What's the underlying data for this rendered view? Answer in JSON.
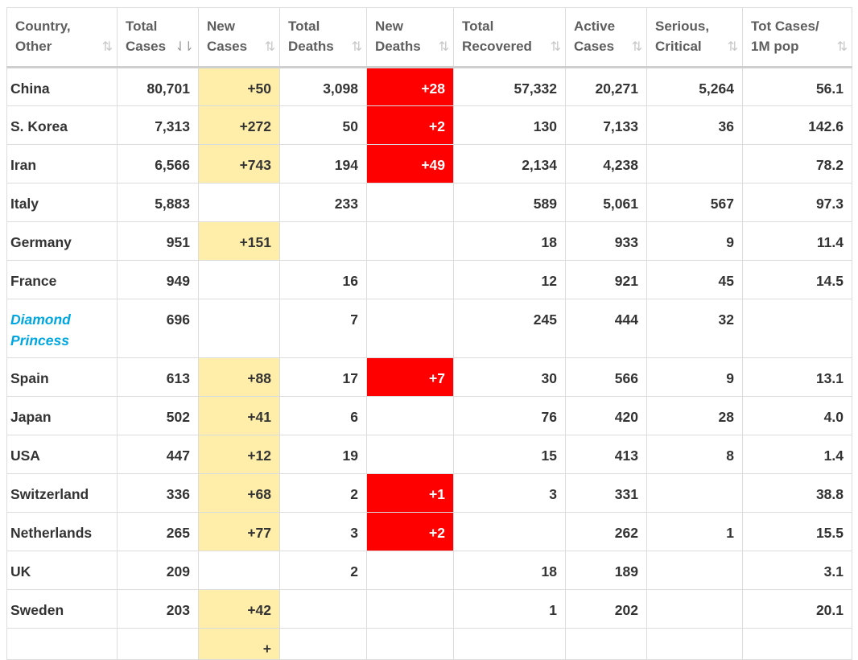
{
  "table": {
    "headers": [
      {
        "label": "Country,\nOther",
        "sort": "default"
      },
      {
        "label": "Total\nCases",
        "sort": "desc"
      },
      {
        "label": "New\nCases",
        "sort": "default"
      },
      {
        "label": "Total\nDeaths",
        "sort": "default"
      },
      {
        "label": "New\nDeaths",
        "sort": "default"
      },
      {
        "label": "Total\nRecovered",
        "sort": "default"
      },
      {
        "label": "Active\nCases",
        "sort": "default"
      },
      {
        "label": "Serious,\nCritical",
        "sort": "default"
      },
      {
        "label": "Tot Cases/\n1M pop",
        "sort": "default"
      }
    ],
    "sort_icons": {
      "default": "⇅",
      "desc": "⇃⇂"
    },
    "rows": [
      {
        "country": "China",
        "total_cases": "80,701",
        "new_cases": "+50",
        "total_deaths": "3,098",
        "new_deaths": "+28",
        "total_recovered": "57,332",
        "active_cases": "20,271",
        "serious_critical": "5,264",
        "tot_cases_1m": "56.1"
      },
      {
        "country": "S. Korea",
        "total_cases": "7,313",
        "new_cases": "+272",
        "total_deaths": "50",
        "new_deaths": "+2",
        "total_recovered": "130",
        "active_cases": "7,133",
        "serious_critical": "36",
        "tot_cases_1m": "142.6"
      },
      {
        "country": "Iran",
        "total_cases": "6,566",
        "new_cases": "+743",
        "total_deaths": "194",
        "new_deaths": "+49",
        "total_recovered": "2,134",
        "active_cases": "4,238",
        "serious_critical": "",
        "tot_cases_1m": "78.2"
      },
      {
        "country": "Italy",
        "total_cases": "5,883",
        "new_cases": "",
        "total_deaths": "233",
        "new_deaths": "",
        "total_recovered": "589",
        "active_cases": "5,061",
        "serious_critical": "567",
        "tot_cases_1m": "97.3"
      },
      {
        "country": "Germany",
        "total_cases": "951",
        "new_cases": "+151",
        "total_deaths": "",
        "new_deaths": "",
        "total_recovered": "18",
        "active_cases": "933",
        "serious_critical": "9",
        "tot_cases_1m": "11.4"
      },
      {
        "country": "France",
        "total_cases": "949",
        "new_cases": "",
        "total_deaths": "16",
        "new_deaths": "",
        "total_recovered": "12",
        "active_cases": "921",
        "serious_critical": "45",
        "tot_cases_1m": "14.5"
      },
      {
        "country": "Diamond\nPrincess",
        "is_link": true,
        "total_cases": "696",
        "new_cases": "",
        "total_deaths": "7",
        "new_deaths": "",
        "total_recovered": "245",
        "active_cases": "444",
        "serious_critical": "32",
        "tot_cases_1m": ""
      },
      {
        "country": "Spain",
        "total_cases": "613",
        "new_cases": "+88",
        "total_deaths": "17",
        "new_deaths": "+7",
        "total_recovered": "30",
        "active_cases": "566",
        "serious_critical": "9",
        "tot_cases_1m": "13.1"
      },
      {
        "country": "Japan",
        "total_cases": "502",
        "new_cases": "+41",
        "total_deaths": "6",
        "new_deaths": "",
        "total_recovered": "76",
        "active_cases": "420",
        "serious_critical": "28",
        "tot_cases_1m": "4.0"
      },
      {
        "country": "USA",
        "total_cases": "447",
        "new_cases": "+12",
        "total_deaths": "19",
        "new_deaths": "",
        "total_recovered": "15",
        "active_cases": "413",
        "serious_critical": "8",
        "tot_cases_1m": "1.4"
      },
      {
        "country": "Switzerland",
        "total_cases": "336",
        "new_cases": "+68",
        "total_deaths": "2",
        "new_deaths": "+1",
        "total_recovered": "3",
        "active_cases": "331",
        "serious_critical": "",
        "tot_cases_1m": "38.8"
      },
      {
        "country": "Netherlands",
        "total_cases": "265",
        "new_cases": "+77",
        "total_deaths": "3",
        "new_deaths": "+2",
        "total_recovered": "",
        "active_cases": "262",
        "serious_critical": "1",
        "tot_cases_1m": "15.5"
      },
      {
        "country": "UK",
        "total_cases": "209",
        "new_cases": "",
        "total_deaths": "2",
        "new_deaths": "",
        "total_recovered": "18",
        "active_cases": "189",
        "serious_critical": "",
        "tot_cases_1m": "3.1"
      },
      {
        "country": "Sweden",
        "total_cases": "203",
        "new_cases": "+42",
        "total_deaths": "",
        "new_deaths": "",
        "total_recovered": "1",
        "active_cases": "202",
        "serious_critical": "",
        "tot_cases_1m": "20.1"
      },
      {
        "country": "",
        "total_cases": "",
        "new_cases": "+",
        "total_deaths": "",
        "new_deaths": "",
        "total_recovered": "",
        "active_cases": "",
        "serious_critical": "",
        "tot_cases_1m": "",
        "partial": true
      }
    ]
  },
  "colors": {
    "new_cases_bg": "#ffeeaa",
    "new_deaths_bg": "#ff0000",
    "link_text": "#00a6e0",
    "header_text": "#5e5e5e",
    "cell_text": "#333333"
  }
}
